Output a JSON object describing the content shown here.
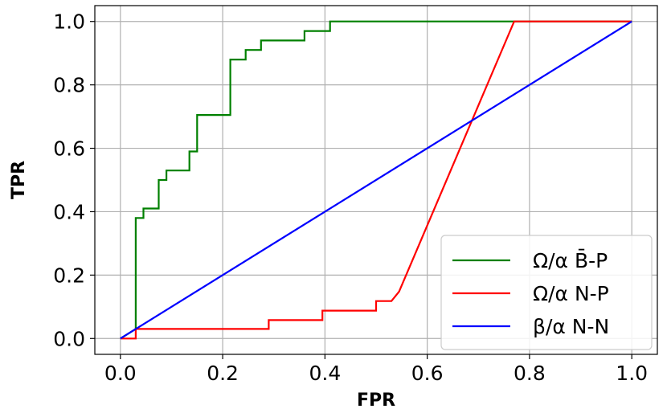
{
  "chart_data": {
    "type": "line",
    "xlabel": "FPR",
    "ylabel": "TPR",
    "xlim": [
      -0.05,
      1.05
    ],
    "ylim": [
      -0.05,
      1.05
    ],
    "xticks": [
      0.0,
      0.2,
      0.4,
      0.6,
      0.8,
      1.0
    ],
    "yticks": [
      0.0,
      0.2,
      0.4,
      0.6,
      0.8,
      1.0
    ],
    "xtick_labels": [
      "0.0",
      "0.2",
      "0.4",
      "0.6",
      "0.8",
      "1.0"
    ],
    "ytick_labels": [
      "0.0",
      "0.2",
      "0.4",
      "0.6",
      "0.8",
      "1.0"
    ],
    "grid": true,
    "legend_position": "lower-right",
    "series": [
      {
        "name": "Ω/α B̄-P",
        "color": "#008000",
        "x": [
          0.0,
          0.03,
          0.03,
          0.03,
          0.045,
          0.045,
          0.075,
          0.075,
          0.09,
          0.09,
          0.135,
          0.135,
          0.15,
          0.15,
          0.215,
          0.215,
          0.245,
          0.245,
          0.275,
          0.275,
          0.36,
          0.36,
          0.41,
          0.41,
          0.77,
          1.0
        ],
        "y": [
          0.0,
          0.03,
          0.25,
          0.38,
          0.38,
          0.41,
          0.41,
          0.5,
          0.5,
          0.53,
          0.53,
          0.59,
          0.59,
          0.705,
          0.705,
          0.88,
          0.88,
          0.91,
          0.91,
          0.94,
          0.94,
          0.97,
          0.97,
          1.0,
          1.0,
          1.0
        ]
      },
      {
        "name": "Ω/α N-P",
        "color": "#ff0000",
        "x": [
          0.0,
          0.03,
          0.03,
          0.29,
          0.29,
          0.395,
          0.395,
          0.5,
          0.5,
          0.53,
          0.545,
          0.77,
          1.0
        ],
        "y": [
          0.0,
          0.0,
          0.03,
          0.03,
          0.058,
          0.058,
          0.088,
          0.088,
          0.118,
          0.118,
          0.148,
          1.0,
          1.0
        ]
      },
      {
        "name": "β/α N-N",
        "color": "#0000ff",
        "x": [
          0.0,
          1.0
        ],
        "y": [
          0.0,
          1.0
        ]
      }
    ]
  }
}
